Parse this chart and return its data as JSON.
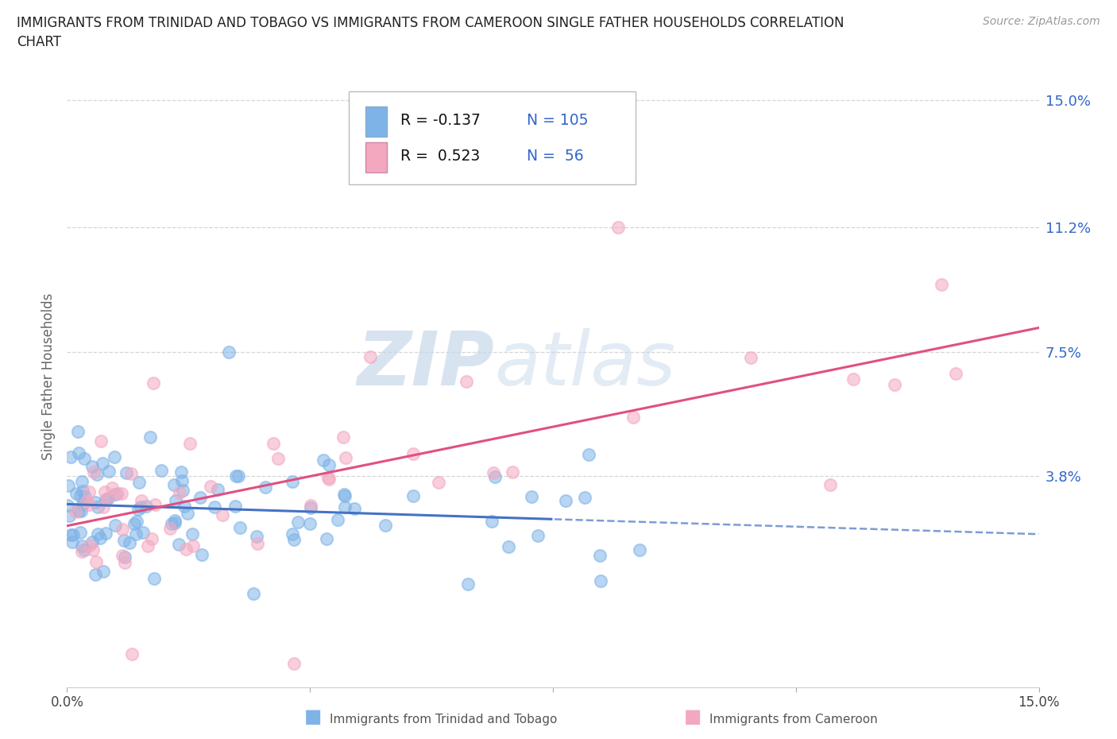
{
  "title_line1": "IMMIGRANTS FROM TRINIDAD AND TOBAGO VS IMMIGRANTS FROM CAMEROON SINGLE FATHER HOUSEHOLDS CORRELATION",
  "title_line2": "CHART",
  "source": "Source: ZipAtlas.com",
  "ylabel": "Single Father Households",
  "xlim": [
    0.0,
    15.0
  ],
  "ylim": [
    -2.5,
    16.0
  ],
  "xtick_positions": [
    0.0,
    3.75,
    7.5,
    11.25,
    15.0
  ],
  "xticklabels": [
    "0.0%",
    "",
    "",
    "",
    "15.0%"
  ],
  "ytick_positions": [
    3.8,
    7.5,
    11.2,
    15.0
  ],
  "ytick_labels": [
    "3.8%",
    "7.5%",
    "11.2%",
    "15.0%"
  ],
  "tt_color": "#7EB3E8",
  "tt_line_color": "#4472C4",
  "cam_color": "#F4A8C0",
  "cam_line_color": "#E05080",
  "background_color": "#ffffff",
  "grid_color": "#cccccc",
  "watermark_color": "#c8d8ea",
  "axis_label_color": "#3366cc",
  "title_color": "#222222",
  "label_color": "#666666",
  "tt_label": "Immigrants from Trinidad and Tobago",
  "cam_label": "Immigrants from Cameroon",
  "legend_r_color": "#111111",
  "legend_n_color": "#3366cc"
}
